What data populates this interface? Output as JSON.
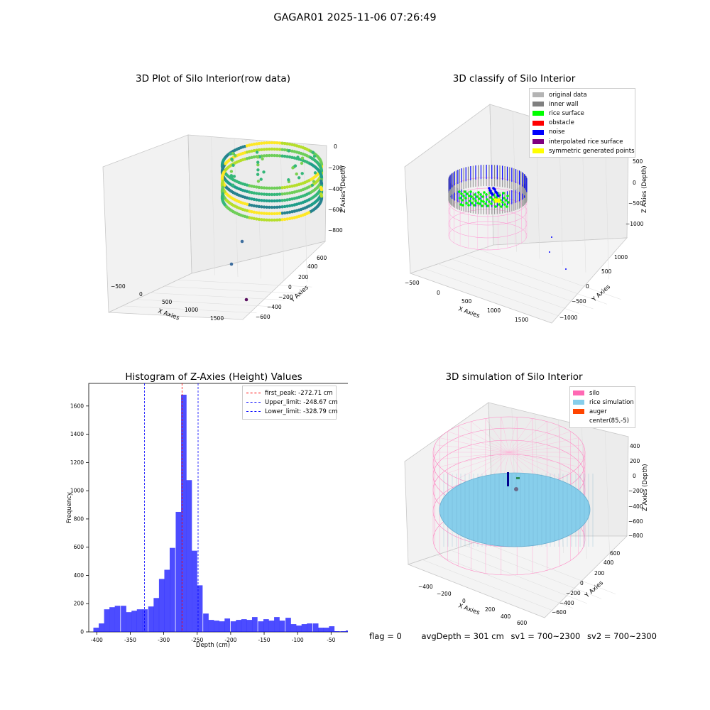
{
  "figure": {
    "suptitle": "GAGAR01 2025-11-06 07:26:49",
    "status": {
      "flag": "flag = 0",
      "avg": "avgDepth = 301 cm",
      "sv1": "sv1 = 700~2300",
      "sv2": "sv2 = 700~2300"
    }
  },
  "chart_data": [
    {
      "type": "scatter",
      "projection": "3d",
      "title": "3D Plot of Silo Interior(row data)",
      "xlabel": "X Axies",
      "ylabel": "Y Axies",
      "zlabel": "Z Axies (Depth)",
      "xticks": [
        "−500",
        "0",
        "500",
        "1000",
        "1500"
      ],
      "yticks": [
        "−600",
        "−400",
        "−200",
        "0",
        "200",
        "400",
        "600"
      ],
      "zticks": [
        "0",
        "−200",
        "−400",
        "−600",
        "−800"
      ],
      "colormap": "viridis",
      "outliers": [
        {
          "x": 1100,
          "y": -400,
          "z": -900
        },
        {
          "x": 1300,
          "y": -350,
          "z": -850
        },
        {
          "x": 1550,
          "y": -450,
          "z": -950
        }
      ]
    },
    {
      "type": "scatter",
      "projection": "3d",
      "title": "3D classify of Silo Interior",
      "xlabel": "X Axies",
      "ylabel": "Y Axies",
      "zlabel": "Z Axies (Depth)",
      "xticks": [
        "−500",
        "0",
        "500",
        "1000",
        "1500"
      ],
      "yticks": [
        "−1000",
        "−500",
        "0",
        "500",
        "1000"
      ],
      "zticks": [
        "500",
        "0",
        "−500",
        "−1000"
      ],
      "legend_position": "top-right",
      "legend": [
        {
          "label": "original data",
          "color": "#b4b4b4"
        },
        {
          "label": "inner wall",
          "color": "#808080"
        },
        {
          "label": "rice surface",
          "color": "#00ff00"
        },
        {
          "label": "obstacle",
          "color": "#ff0000"
        },
        {
          "label": "noise",
          "color": "#0000ff"
        },
        {
          "label": "interpolated rice surface",
          "color": "#800080"
        },
        {
          "label": "symmetric generated points",
          "color": "#ffff00"
        }
      ]
    },
    {
      "type": "bar",
      "title": "Histogram of Z-Axies (Height) Values",
      "xlabel": "Depth (cm)",
      "ylabel": "Frequency",
      "xlim": [
        -412,
        8
      ],
      "ylim": [
        0,
        1760
      ],
      "xticks": [
        -400,
        -350,
        -300,
        -250,
        -200,
        -150,
        -100,
        -50,
        0
      ],
      "yticks": [
        0,
        200,
        400,
        600,
        800,
        1000,
        1200,
        1400,
        1600
      ],
      "bar_color": "#0000ff",
      "bin_width": 8.2,
      "bins": [
        {
          "x": -401,
          "count": 30
        },
        {
          "x": -393,
          "count": 60
        },
        {
          "x": -385,
          "count": 160
        },
        {
          "x": -377,
          "count": 175
        },
        {
          "x": -369,
          "count": 185
        },
        {
          "x": -360,
          "count": 185
        },
        {
          "x": -352,
          "count": 140
        },
        {
          "x": -344,
          "count": 150
        },
        {
          "x": -336,
          "count": 160
        },
        {
          "x": -328,
          "count": 160
        },
        {
          "x": -319,
          "count": 180
        },
        {
          "x": -311,
          "count": 240
        },
        {
          "x": -303,
          "count": 375
        },
        {
          "x": -295,
          "count": 440
        },
        {
          "x": -287,
          "count": 595
        },
        {
          "x": -278,
          "count": 850
        },
        {
          "x": -270,
          "count": 1680
        },
        {
          "x": -262,
          "count": 1075
        },
        {
          "x": -254,
          "count": 575
        },
        {
          "x": -246,
          "count": 330
        },
        {
          "x": -237,
          "count": 130
        },
        {
          "x": -229,
          "count": 85
        },
        {
          "x": -221,
          "count": 80
        },
        {
          "x": -213,
          "count": 75
        },
        {
          "x": -205,
          "count": 95
        },
        {
          "x": -196,
          "count": 75
        },
        {
          "x": -188,
          "count": 85
        },
        {
          "x": -180,
          "count": 90
        },
        {
          "x": -172,
          "count": 85
        },
        {
          "x": -164,
          "count": 105
        },
        {
          "x": -155,
          "count": 75
        },
        {
          "x": -147,
          "count": 90
        },
        {
          "x": -139,
          "count": 80
        },
        {
          "x": -131,
          "count": 105
        },
        {
          "x": -123,
          "count": 80
        },
        {
          "x": -114,
          "count": 100
        },
        {
          "x": -106,
          "count": 55
        },
        {
          "x": -98,
          "count": 45
        },
        {
          "x": -90,
          "count": 55
        },
        {
          "x": -82,
          "count": 60
        },
        {
          "x": -73,
          "count": 60
        },
        {
          "x": -65,
          "count": 30
        },
        {
          "x": -57,
          "count": 30
        },
        {
          "x": -49,
          "count": 40
        },
        {
          "x": -41,
          "count": 5
        },
        {
          "x": -32,
          "count": 5
        },
        {
          "x": -24,
          "count": 10
        },
        {
          "x": -16,
          "count": 15
        },
        {
          "x": -8,
          "count": 5
        },
        {
          "x": 0,
          "count": 30
        }
      ],
      "vlines": [
        {
          "label": "first_peak: -272.71 cm",
          "x": -272.71,
          "color": "#ff0000"
        },
        {
          "label": "Upper_limit: -248.67 cm",
          "x": -248.67,
          "color": "#0000ff"
        },
        {
          "label": "Lower_limit: -328.79 cm",
          "x": -328.79,
          "color": "#0000ff"
        }
      ],
      "legend_position": "top-right"
    },
    {
      "type": "scatter",
      "projection": "3d",
      "title": "3D simulation of Silo Interior",
      "xlabel": "X Axies",
      "ylabel": "Y Axies",
      "zlabel": "Z Axies (Depth)",
      "xticks": [
        "−400",
        "−200",
        "0",
        "200",
        "400",
        "600"
      ],
      "yticks": [
        "−600",
        "−400",
        "−200",
        "0",
        "200",
        "400",
        "600"
      ],
      "zticks": [
        "400",
        "200",
        "0",
        "−200",
        "−400",
        "−600",
        "−800"
      ],
      "legend_position": "top-right",
      "legend": [
        {
          "label": "silo",
          "color": "#ff69b4"
        },
        {
          "label": "rice simulation",
          "color": "#87ceeb"
        },
        {
          "label": "auger",
          "color": "#ff4500"
        },
        {
          "label": "center(85,-5)",
          "color": "#ffffff"
        }
      ]
    }
  ]
}
